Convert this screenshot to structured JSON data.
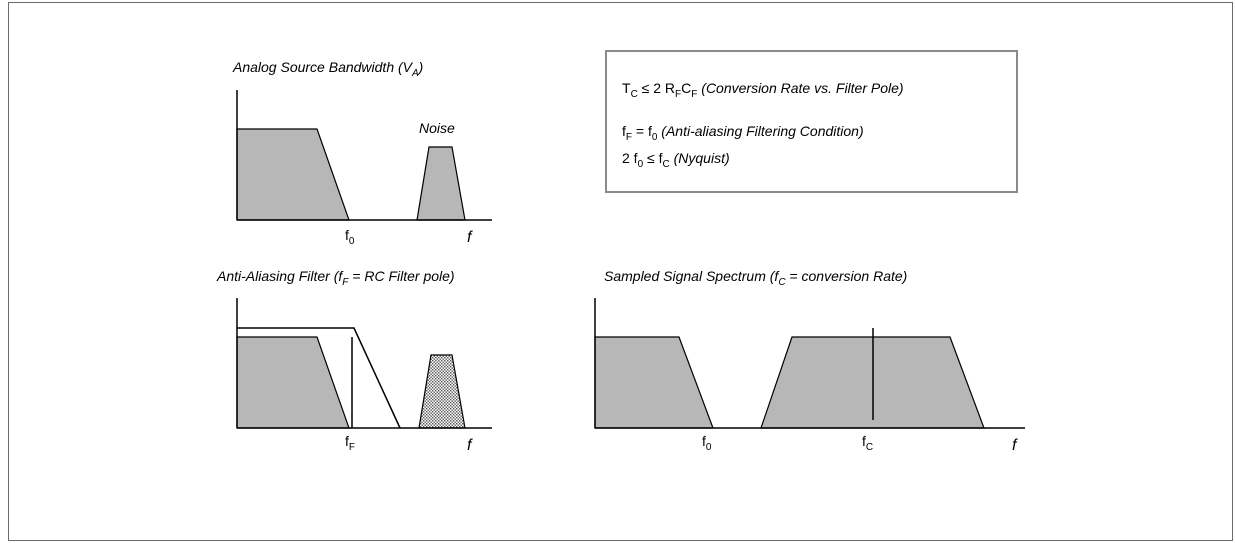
{
  "colors": {
    "fill": "#b7b7b7",
    "stroke": "#000000",
    "box_border": "#8a8a8a",
    "frame_border": "#6b6b6b"
  },
  "panels": {
    "source": {
      "title": "Analog Source Bandwidth (V",
      "title_sub": "A",
      "title_end": ")",
      "noise_label": "Noise",
      "tick_f0": "f",
      "tick_f0_sub": "0",
      "axis_f": "f"
    },
    "filter": {
      "title_a": "Anti-Aliasing Filter (f",
      "title_sub": "F",
      "title_b": " = RC Filter pole)",
      "tick_fF": "f",
      "tick_fF_sub": "F",
      "axis_f": "f"
    },
    "sampled": {
      "title_a": "Sampled Signal Spectrum (f",
      "title_sub": "C",
      "title_b": " = conversion Rate)",
      "tick_f0": "f",
      "tick_f0_sub": "0",
      "tick_fC": "f",
      "tick_fC_sub": "C",
      "axis_f": "f"
    }
  },
  "conditions_box": {
    "line1": {
      "a": "T",
      "a_sub": "C",
      "b": " ≤ 2 R",
      "b_sub": "F",
      "c": "C",
      "c_sub": "F",
      "desc": " (Conversion Rate vs. Filter Pole)"
    },
    "line2": {
      "a": "f",
      "a_sub": "F",
      "b": " = f",
      "b_sub": "0",
      "desc": " (Anti-aliasing Filtering Condition)"
    },
    "line3": {
      "a": "2 f",
      "a_sub": "0",
      "b": " ≤ f",
      "b_sub": "C",
      "desc": " (Nyquist)"
    }
  }
}
